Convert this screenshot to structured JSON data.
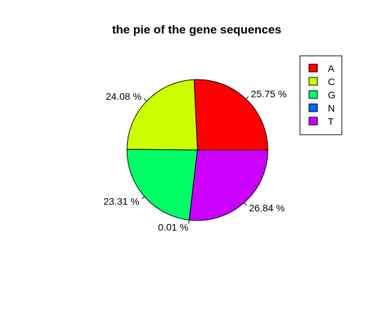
{
  "chart_data": {
    "type": "pie",
    "title": "the pie of the gene sequences",
    "slices": [
      {
        "name": "A",
        "value": 25.75,
        "label": "25.75 %",
        "color": "#FF0000"
      },
      {
        "name": "C",
        "value": 24.08,
        "label": "24.08 %",
        "color": "#CCFF00"
      },
      {
        "name": "G",
        "value": 23.31,
        "label": "23.31 %",
        "color": "#00FF66"
      },
      {
        "name": "N",
        "value": 0.01,
        "label": "0.01 %",
        "color": "#0066FF"
      },
      {
        "name": "T",
        "value": 26.84,
        "label": "26.84 %",
        "color": "#CC00FF"
      }
    ],
    "start_angle_deg": 0,
    "direction": "counterclockwise",
    "legend_position": "top-right"
  }
}
